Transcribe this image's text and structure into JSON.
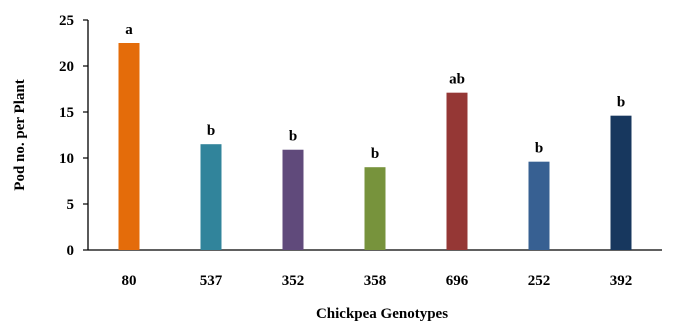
{
  "chart_data": {
    "type": "bar",
    "xlabel": "Chickpea Genotypes",
    "ylabel": "Pod no. per Plant",
    "ylim": [
      0,
      25
    ],
    "yticks": [
      0,
      5,
      10,
      15,
      20,
      25
    ],
    "grid": false,
    "categories": [
      "80",
      "537",
      "352",
      "358",
      "696",
      "252",
      "392"
    ],
    "values": [
      22.5,
      11.5,
      10.9,
      9.0,
      17.1,
      9.6,
      14.6
    ],
    "letters": [
      "a",
      "b",
      "b",
      "b",
      "ab",
      "b",
      "b"
    ],
    "colors": [
      "#E46C0A",
      "#31849B",
      "#604A7B",
      "#77933C",
      "#953735",
      "#376092",
      "#17375E"
    ]
  }
}
